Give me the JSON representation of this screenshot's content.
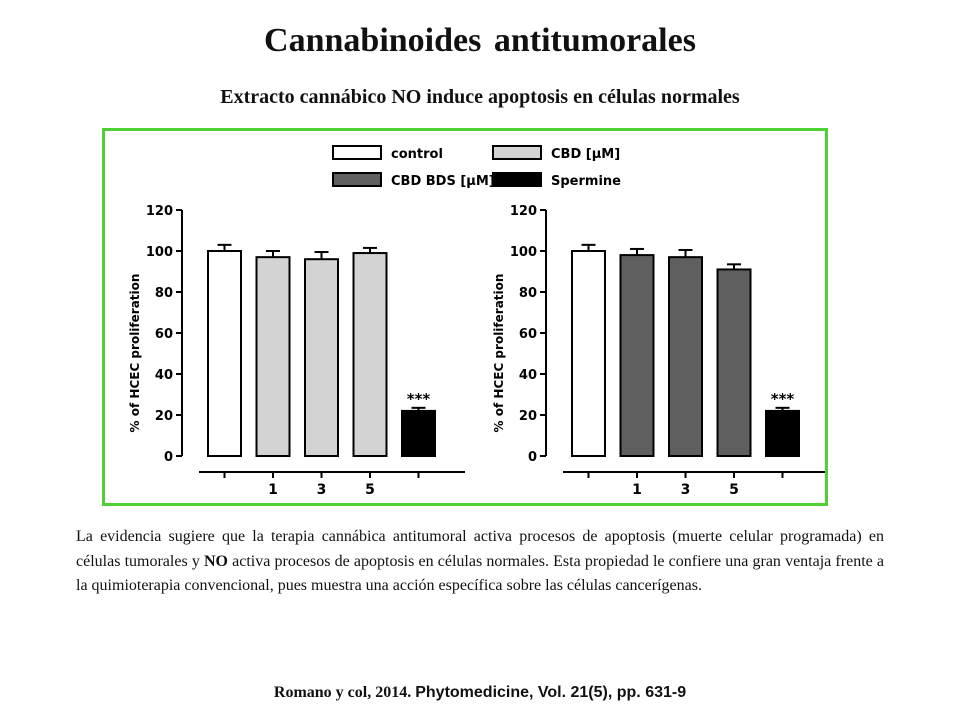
{
  "page": {
    "title": "Cannabinoides  antitumorales",
    "subtitle": "Extracto cannábico NO induce apoptosis en células normales",
    "caption_parts": [
      "La evidencia sugiere que la terapia cannábica antitumoral activa procesos de apoptosis (muerte celular programada) en células tumorales y ",
      "NO",
      " activa procesos de apoptosis en células normales. Esta propiedad le confiere una gran ventaja frente a la quimioterapia convencional, pues muestra una acción específica sobre las células cancerígenas."
    ],
    "citation_authors": "Romano y col, 2014.",
    "citation_journal": "Phytomedicine, Vol. 21(5), pp. 631-9"
  },
  "colors": {
    "frame_border": "#4fd135",
    "control": "#ffffff",
    "cbd": "#d3d3d3",
    "cbd_bds": "#5f5f5f",
    "spermine": "#000000"
  },
  "legend": {
    "entries": [
      {
        "label": "control",
        "color": "#ffffff"
      },
      {
        "label": "CBD [µM]",
        "color": "#d3d3d3"
      },
      {
        "label": "CBD BDS [µM]",
        "color": "#5f5f5f"
      },
      {
        "label": "Spermine",
        "color": "#000000"
      }
    ]
  },
  "chart_data": [
    {
      "type": "bar",
      "ylabel": "% of HCEC proliferation",
      "ylim": [
        0,
        120
      ],
      "yticks": [
        0,
        20,
        40,
        60,
        80,
        100,
        120
      ],
      "categories": [
        "",
        "1",
        "3",
        "5",
        ""
      ],
      "series": [
        {
          "name": "control",
          "values": [
            100,
            null,
            null,
            null,
            null
          ],
          "errors": [
            3,
            null,
            null,
            null,
            null
          ]
        },
        {
          "name": "CBD [µM]",
          "values": [
            null,
            97,
            96,
            99,
            null
          ],
          "errors": [
            null,
            3,
            3.5,
            2.5,
            null
          ]
        },
        {
          "name": "Spermine",
          "values": [
            null,
            null,
            null,
            null,
            22
          ],
          "errors": [
            null,
            null,
            null,
            null,
            1.5
          ]
        }
      ],
      "annotations": [
        {
          "category_index": 4,
          "text": "***"
        }
      ]
    },
    {
      "type": "bar",
      "ylabel": "% of HCEC proliferation",
      "ylim": [
        0,
        120
      ],
      "yticks": [
        0,
        20,
        40,
        60,
        80,
        100,
        120
      ],
      "categories": [
        "",
        "1",
        "3",
        "5",
        ""
      ],
      "series": [
        {
          "name": "control",
          "values": [
            100,
            null,
            null,
            null,
            null
          ],
          "errors": [
            3,
            null,
            null,
            null,
            null
          ]
        },
        {
          "name": "CBD BDS [µM]",
          "values": [
            null,
            98,
            97,
            91,
            null
          ],
          "errors": [
            null,
            3,
            3.5,
            2.5,
            null
          ]
        },
        {
          "name": "Spermine",
          "values": [
            null,
            null,
            null,
            null,
            22
          ],
          "errors": [
            null,
            null,
            null,
            null,
            1.5
          ]
        }
      ],
      "annotations": [
        {
          "category_index": 4,
          "text": "***"
        }
      ]
    }
  ]
}
